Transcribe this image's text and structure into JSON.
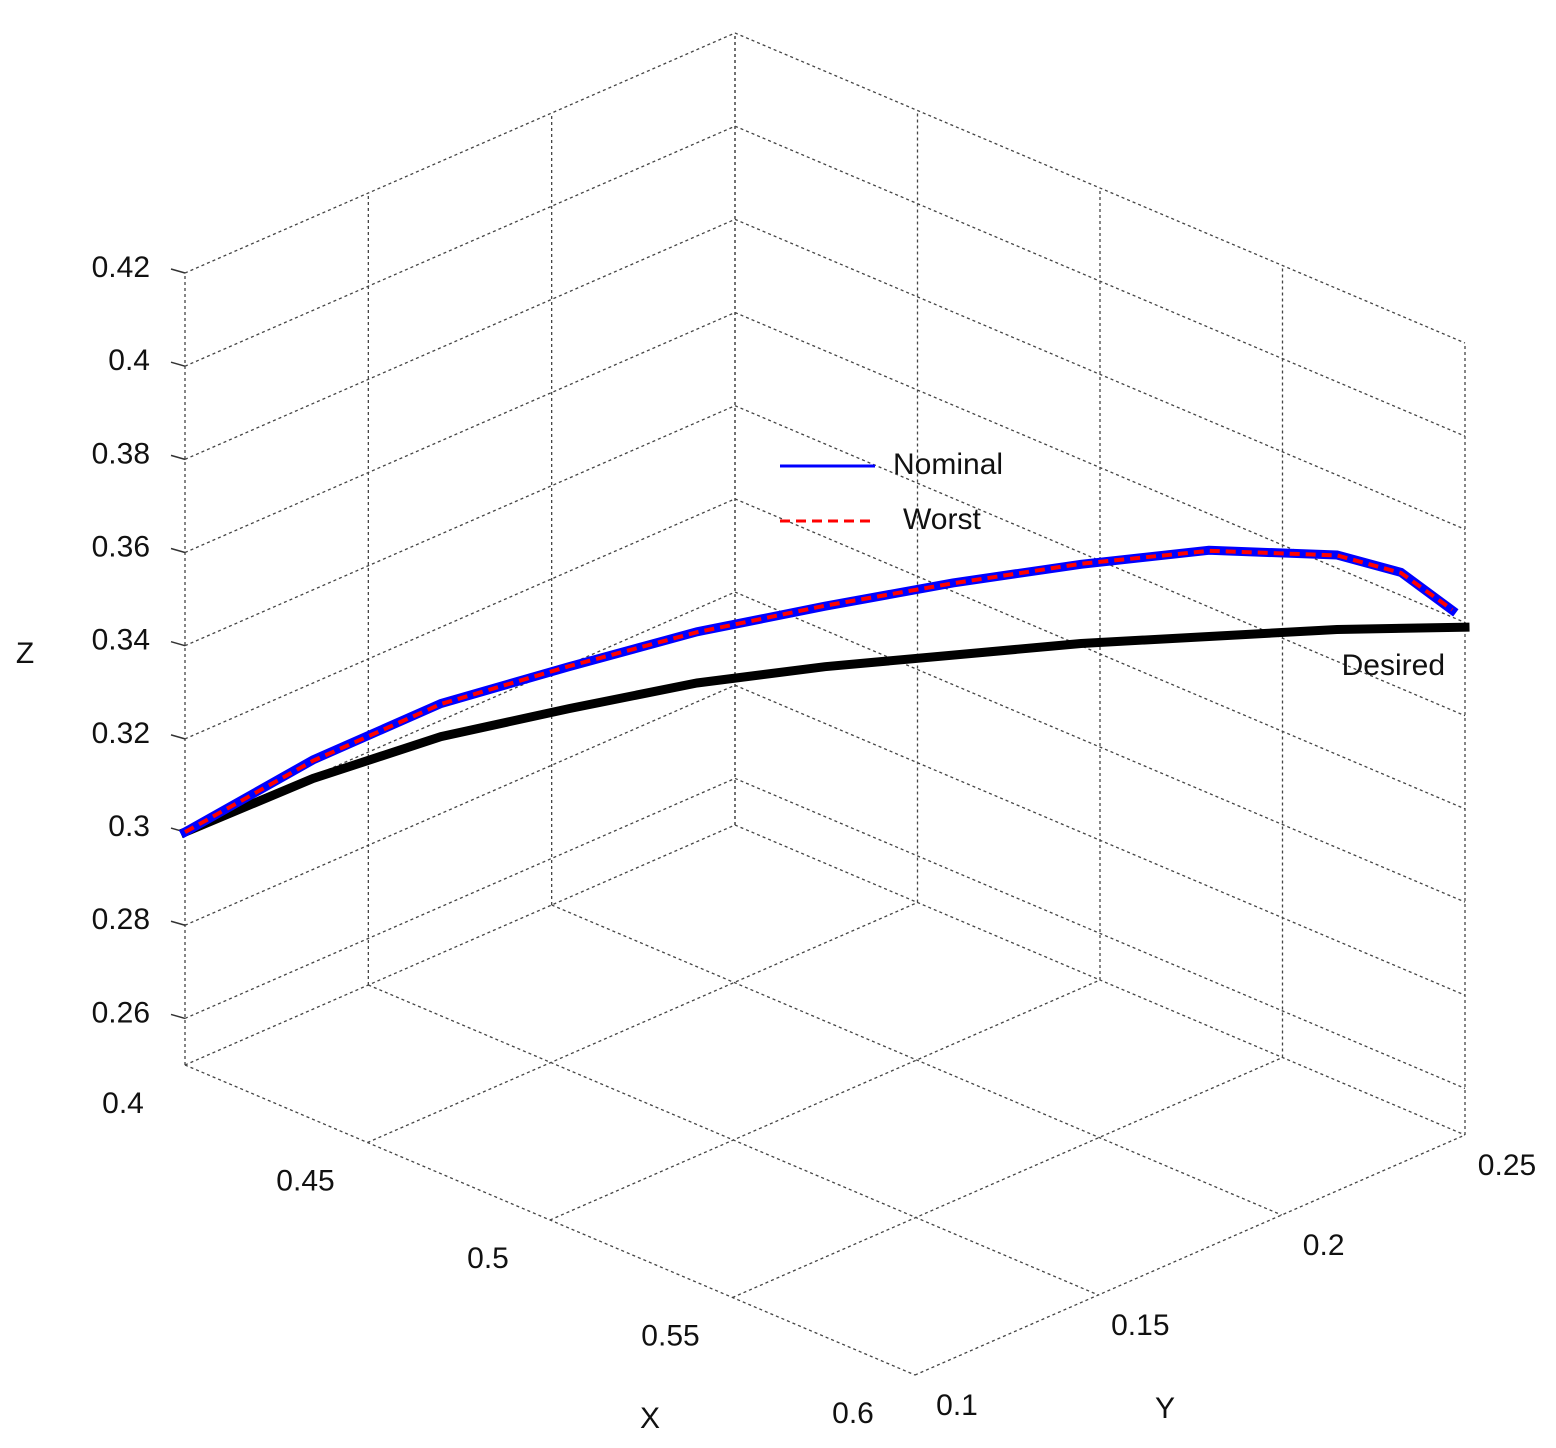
{
  "chart_data": {
    "type": "line3d",
    "xlabel": "X",
    "ylabel": "Y",
    "zlabel": "Z",
    "xlim": [
      0.4,
      0.6
    ],
    "ylim": [
      0.1,
      0.25
    ],
    "zlim": [
      0.25,
      0.42
    ],
    "xticks": [
      0.4,
      0.45,
      0.5,
      0.55,
      0.6
    ],
    "yticks": [
      0.1,
      0.15,
      0.2,
      0.25
    ],
    "zticks": [
      0.26,
      0.28,
      0.3,
      0.32,
      0.34,
      0.36,
      0.38,
      0.4,
      0.42
    ],
    "grid": true,
    "series": [
      {
        "name": "Desired",
        "color": "#000000",
        "labeled": true,
        "x": [
          0.4,
          0.42,
          0.44,
          0.46,
          0.48,
          0.5,
          0.52,
          0.54,
          0.56,
          0.58,
          0.6
        ],
        "y": [
          0.1,
          0.115,
          0.13,
          0.145,
          0.16,
          0.175,
          0.19,
          0.205,
          0.22,
          0.235,
          0.25
        ],
        "z": [
          0.3,
          0.313,
          0.3235,
          0.331,
          0.338,
          0.343,
          0.347,
          0.351,
          0.354,
          0.357,
          0.359
        ]
      },
      {
        "name": "Nominal",
        "color": "#0000ff",
        "x": [
          0.4,
          0.42,
          0.44,
          0.46,
          0.48,
          0.5,
          0.52,
          0.54,
          0.56,
          0.58,
          0.59,
          0.598
        ],
        "y": [
          0.1,
          0.115,
          0.13,
          0.145,
          0.16,
          0.175,
          0.19,
          0.205,
          0.22,
          0.235,
          0.2425,
          0.2485
        ],
        "z": [
          0.3,
          0.317,
          0.3306,
          0.34,
          0.349,
          0.356,
          0.3625,
          0.368,
          0.3725,
          0.373,
          0.37,
          0.3625
        ]
      },
      {
        "name": "Worst",
        "color": "#ff0000",
        "dashed": true,
        "x": [
          0.4,
          0.42,
          0.44,
          0.46,
          0.48,
          0.5,
          0.52,
          0.54,
          0.56,
          0.58,
          0.59,
          0.598
        ],
        "y": [
          0.1,
          0.115,
          0.13,
          0.145,
          0.16,
          0.175,
          0.19,
          0.205,
          0.22,
          0.235,
          0.2425,
          0.2485
        ],
        "z": [
          0.3,
          0.3168,
          0.3305,
          0.3401,
          0.3489,
          0.3561,
          0.3624,
          0.3681,
          0.3724,
          0.3729,
          0.3699,
          0.3626
        ]
      }
    ]
  }
}
